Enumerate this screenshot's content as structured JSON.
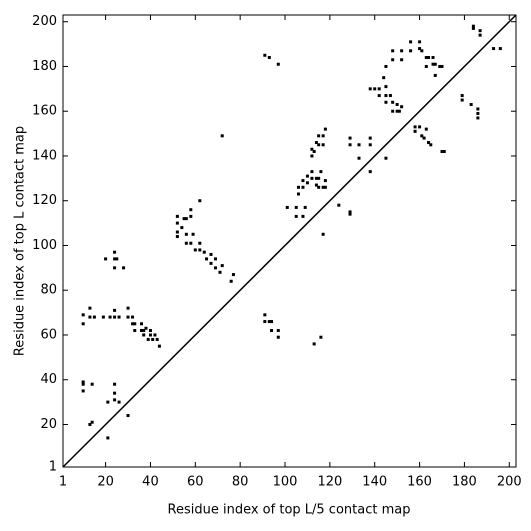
{
  "chart_data": {
    "type": "scatter",
    "x_label": "Residue index of top L/5 contact map",
    "y_label": "Residue index of top L contact map",
    "xlim": [
      1,
      203
    ],
    "ylim": [
      1,
      203
    ],
    "xticks": [
      1,
      20,
      40,
      60,
      80,
      100,
      120,
      140,
      160,
      180,
      200
    ],
    "yticks": [
      1,
      20,
      40,
      60,
      80,
      100,
      120,
      140,
      160,
      180,
      200
    ],
    "color": "#000000",
    "diagonal": true,
    "x": [
      184,
      184,
      187,
      187,
      193,
      196,
      179,
      179,
      183,
      186,
      186,
      186,
      156,
      160,
      160,
      161,
      156,
      163,
      164,
      166,
      167,
      169,
      166,
      163,
      167,
      170,
      148,
      148,
      152,
      152,
      138,
      140,
      142,
      142,
      144,
      145,
      145,
      145,
      147,
      148,
      145,
      150,
      151,
      150,
      148,
      152,
      158,
      158,
      160,
      161,
      162,
      163,
      164,
      165,
      170,
      171,
      145,
      138,
      138,
      129,
      129,
      133,
      133,
      138,
      112,
      112,
      114,
      115,
      115,
      117,
      118,
      113,
      117,
      110,
      110,
      112,
      112,
      114,
      115,
      114,
      115,
      117,
      118,
      118,
      116,
      106,
      106,
      108,
      108,
      109,
      108,
      105,
      105,
      101,
      117,
      124,
      129,
      129,
      52,
      52,
      52,
      55,
      56,
      58,
      58,
      62,
      56,
      56,
      58,
      59,
      62,
      62,
      60,
      64,
      65,
      67,
      67,
      69,
      69,
      71,
      72,
      76,
      77,
      52,
      54,
      20,
      24,
      24,
      25,
      24,
      28,
      10,
      10,
      13,
      13,
      15,
      19,
      22,
      24,
      24,
      26,
      30,
      30,
      32,
      32,
      33,
      33,
      36,
      36,
      37,
      37,
      38,
      39,
      40,
      40,
      42,
      41,
      43,
      44,
      10,
      10,
      10,
      14,
      13,
      14,
      21,
      21,
      24,
      24,
      24,
      26,
      30,
      72,
      93,
      97,
      91,
      91,
      91,
      93,
      94,
      94,
      97,
      97,
      113,
      116
    ],
    "values": [
      198,
      197,
      196,
      194,
      188,
      188,
      167,
      165,
      163,
      161,
      159,
      157,
      191,
      191,
      188,
      187,
      187,
      184,
      184,
      181,
      181,
      180,
      184,
      180,
      176,
      180,
      187,
      183,
      187,
      183,
      170,
      170,
      170,
      167,
      175,
      180,
      171,
      167,
      167,
      164,
      164,
      163,
      160,
      160,
      160,
      162,
      153,
      151,
      153,
      149,
      148,
      152,
      146,
      145,
      142,
      142,
      139,
      148,
      145,
      148,
      145,
      145,
      139,
      133,
      143,
      140,
      146,
      145,
      149,
      149,
      152,
      142,
      145,
      131,
      128,
      130,
      133,
      130,
      130,
      127,
      126,
      126,
      126,
      129,
      133,
      126,
      123,
      126,
      129,
      117,
      113,
      117,
      113,
      117,
      105,
      118,
      115,
      114,
      113,
      110,
      106,
      112,
      112,
      116,
      113,
      120,
      105,
      101,
      101,
      105,
      101,
      98,
      98,
      97,
      94,
      96,
      92,
      90,
      94,
      88,
      91,
      84,
      87,
      104,
      108,
      94,
      97,
      94,
      94,
      90,
      90,
      69,
      65,
      72,
      68,
      68,
      68,
      68,
      71,
      68,
      68,
      72,
      68,
      68,
      65,
      65,
      62,
      65,
      62,
      62,
      60,
      63,
      58,
      60,
      62,
      60,
      58,
      58,
      55,
      39,
      35,
      38,
      38,
      20,
      21,
      14,
      30,
      38,
      34,
      31,
      30,
      24,
      149,
      184,
      181,
      185,
      69,
      66,
      66,
      66,
      62,
      62,
      59,
      56,
      59
    ]
  }
}
